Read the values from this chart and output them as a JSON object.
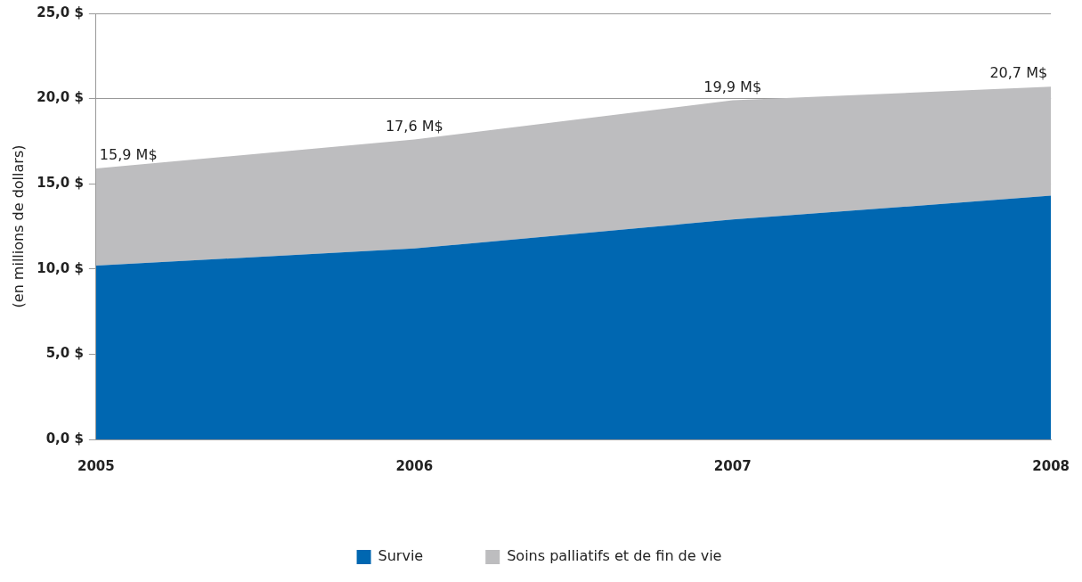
{
  "chart_data": {
    "type": "area",
    "stacked": true,
    "ylabel": "(en millions de dollars)",
    "categories": [
      "2005",
      "2006",
      "2007",
      "2008"
    ],
    "series": [
      {
        "name": "Survie",
        "color": "#0067b1",
        "values": [
          10.2,
          11.2,
          12.9,
          14.3
        ]
      },
      {
        "name": "Soins palliatifs et de fin de vie",
        "color": "#bdbdbf",
        "values": [
          5.7,
          6.4,
          7.0,
          6.4
        ]
      }
    ],
    "totals": [
      "15,9 M$",
      "17,6 M$",
      "19,9 M$",
      "20,7 M$"
    ],
    "ylim": [
      0,
      25
    ],
    "yticks": [
      {
        "value": 0,
        "label": "0,0 $"
      },
      {
        "value": 5,
        "label": "5,0 $"
      },
      {
        "value": 10,
        "label": "10,0 $"
      },
      {
        "value": 15,
        "label": "15,0 $"
      },
      {
        "value": 20,
        "label": "20,0 $"
      },
      {
        "value": 25,
        "label": "25,0 $"
      }
    ],
    "grid": "y",
    "legend": "bottom"
  }
}
